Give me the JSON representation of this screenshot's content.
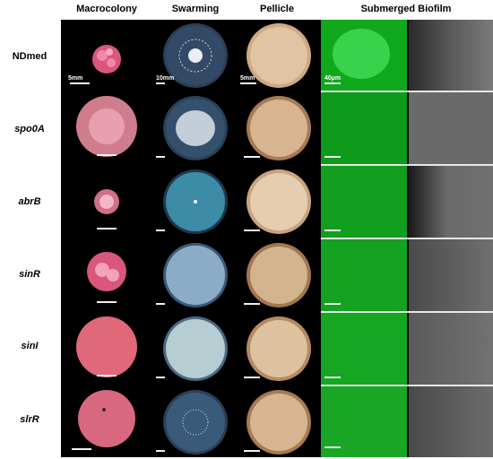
{
  "columns": {
    "macrocolony": "Macrocolony",
    "swarming": "Swarming",
    "pellicle": "Pellicle",
    "submerged": "Submerged Biofilm"
  },
  "rows": [
    {
      "label": "NDmed",
      "italic": false
    },
    {
      "label": "spo0A",
      "italic": true
    },
    {
      "label": "abrB",
      "italic": true
    },
    {
      "label": "sinR",
      "italic": true
    },
    {
      "label": "sinI",
      "italic": true
    },
    {
      "label": "slrR",
      "italic": true
    }
  ],
  "scale_labels": {
    "macrocolony": "5mm",
    "swarming": "10mm",
    "pellicle": "5mm",
    "biofilm": "40µm"
  },
  "colors": {
    "colony_pink": "#e05a7a",
    "biofilm_green": "#10a81c",
    "pellicle_tan": "#d9b896",
    "swarm_blue": "#3a5a78"
  }
}
